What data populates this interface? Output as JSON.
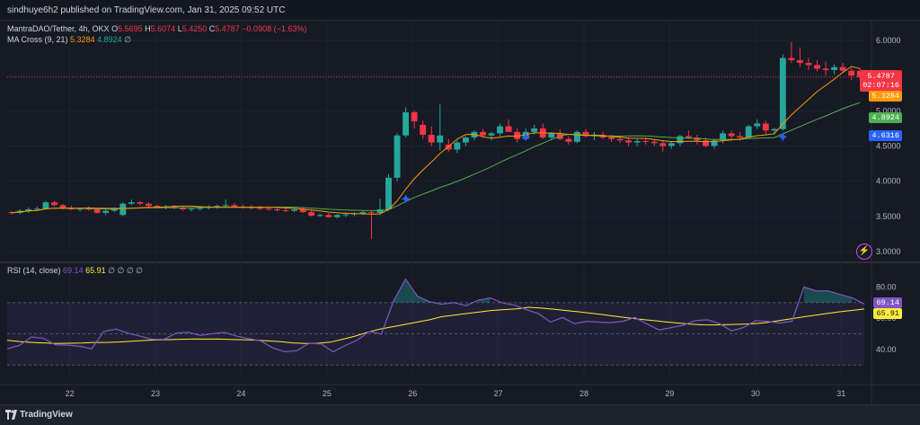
{
  "header": {
    "publish_text": "sindhuye6h2 published on TradingView.com, Jan 31, 2025 09:52 UTC"
  },
  "legend": {
    "symbol": "MantraDAO/Tether, 4h, OKX",
    "o_label": "O",
    "o_value": "5.5695",
    "h_label": "H",
    "h_value": "5.6074",
    "l_label": "L",
    "l_value": "5.4250",
    "c_label": "C",
    "c_value": "5.4787",
    "change": "−0.0908 (−1.63%)",
    "ma_label": "MA Cross (9, 21)",
    "ma_fast": "5.3284",
    "ma_slow": "4.8924",
    "ma_extra": "∅",
    "rsi_label": "RSI (14, close)",
    "rsi_value": "69.14",
    "rsi_ma": "65.91",
    "rsi_extra": "∅ ∅ ∅ ∅"
  },
  "price_tags": {
    "last_price": "5.4787",
    "countdown": "02:07:16",
    "ma_fast": "5.3284",
    "ma_slow": "4.8924",
    "cross_level": "4.6316",
    "rsi": "69.14",
    "rsi_ma": "65.91"
  },
  "footer": {
    "brand": "TradingView"
  },
  "colors": {
    "up": "#26a69a",
    "down": "#f23645",
    "ma_fast": "#ff9800",
    "ma_slow": "#4caf50",
    "rsi": "#7e57c2",
    "rsi_ma": "#ffeb3b",
    "cross": "#2962ff"
  },
  "chart_data": [
    {
      "type": "candlestick",
      "title": "MantraDAO/Tether, 4h, OKX",
      "ylim": [
        3.0,
        6.0
      ],
      "y_ticks": [
        3.0,
        3.5,
        4.0,
        4.5,
        5.0,
        5.5,
        6.0
      ],
      "y_tick_labels": [
        "3.0000",
        "3.5000",
        "4.0000",
        "4.5000",
        "5.0000",
        "5.5000",
        "6.0000"
      ],
      "x_ticks": [
        {
          "day": "22",
          "i": 6.8
        },
        {
          "day": "23",
          "i": 16.8
        },
        {
          "day": "24",
          "i": 26.8
        },
        {
          "day": "25",
          "i": 36.8
        },
        {
          "day": "26",
          "i": 46.8
        },
        {
          "day": "27",
          "i": 56.8
        },
        {
          "day": "28",
          "i": 66.8
        },
        {
          "day": "29",
          "i": 76.8
        },
        {
          "day": "30",
          "i": 86.8
        },
        {
          "day": "31",
          "i": 96.8
        }
      ],
      "candles": [
        [
          3.56,
          3.58,
          3.53,
          3.55
        ],
        [
          3.55,
          3.6,
          3.53,
          3.58
        ],
        [
          3.58,
          3.63,
          3.55,
          3.6
        ],
        [
          3.6,
          3.64,
          3.58,
          3.61
        ],
        [
          3.61,
          3.72,
          3.6,
          3.7
        ],
        [
          3.7,
          3.72,
          3.64,
          3.66
        ],
        [
          3.66,
          3.68,
          3.6,
          3.62
        ],
        [
          3.62,
          3.65,
          3.59,
          3.6
        ],
        [
          3.6,
          3.63,
          3.57,
          3.61
        ],
        [
          3.61,
          3.64,
          3.58,
          3.6
        ],
        [
          3.6,
          3.62,
          3.54,
          3.55
        ],
        [
          3.55,
          3.6,
          3.52,
          3.58
        ],
        [
          3.58,
          3.63,
          3.56,
          3.61
        ],
        [
          3.52,
          3.7,
          3.5,
          3.68
        ],
        [
          3.68,
          3.74,
          3.66,
          3.7
        ],
        [
          3.7,
          3.72,
          3.66,
          3.68
        ],
        [
          3.68,
          3.7,
          3.63,
          3.65
        ],
        [
          3.65,
          3.67,
          3.61,
          3.63
        ],
        [
          3.63,
          3.66,
          3.6,
          3.64
        ],
        [
          3.64,
          3.66,
          3.6,
          3.62
        ],
        [
          3.62,
          3.64,
          3.58,
          3.6
        ],
        [
          3.6,
          3.63,
          3.57,
          3.61
        ],
        [
          3.61,
          3.64,
          3.58,
          3.62
        ],
        [
          3.62,
          3.66,
          3.6,
          3.64
        ],
        [
          3.64,
          3.67,
          3.61,
          3.65
        ],
        [
          3.65,
          3.74,
          3.62,
          3.66
        ],
        [
          3.66,
          3.69,
          3.63,
          3.64
        ],
        [
          3.64,
          3.67,
          3.61,
          3.63
        ],
        [
          3.63,
          3.66,
          3.6,
          3.62
        ],
        [
          3.62,
          3.65,
          3.59,
          3.61
        ],
        [
          3.61,
          3.64,
          3.58,
          3.6
        ],
        [
          3.6,
          3.63,
          3.57,
          3.59
        ],
        [
          3.59,
          3.62,
          3.56,
          3.58
        ],
        [
          3.58,
          3.62,
          3.56,
          3.6
        ],
        [
          3.6,
          3.63,
          3.55,
          3.56
        ],
        [
          3.56,
          3.59,
          3.5,
          3.51
        ],
        [
          3.51,
          3.54,
          3.49,
          3.52
        ],
        [
          3.52,
          3.55,
          3.48,
          3.49
        ],
        [
          3.49,
          3.53,
          3.47,
          3.52
        ],
        [
          3.52,
          3.56,
          3.49,
          3.53
        ],
        [
          3.53,
          3.56,
          3.5,
          3.54
        ],
        [
          3.54,
          3.58,
          3.52,
          3.56
        ],
        [
          3.56,
          3.58,
          3.18,
          3.55
        ],
        [
          3.55,
          3.75,
          3.52,
          3.6
        ],
        [
          3.6,
          4.1,
          3.58,
          4.05
        ],
        [
          4.05,
          4.68,
          4.0,
          4.65
        ],
        [
          4.65,
          5.05,
          4.62,
          4.98
        ],
        [
          4.98,
          5.0,
          4.75,
          4.85
        ],
        [
          4.8,
          4.86,
          4.6,
          4.66
        ],
        [
          4.66,
          4.78,
          4.5,
          4.55
        ],
        [
          4.55,
          5.1,
          4.44,
          4.65
        ],
        [
          4.52,
          4.6,
          4.42,
          4.45
        ],
        [
          4.45,
          4.58,
          4.4,
          4.55
        ],
        [
          4.55,
          4.64,
          4.5,
          4.62
        ],
        [
          4.62,
          4.72,
          4.58,
          4.7
        ],
        [
          4.7,
          4.74,
          4.62,
          4.65
        ],
        [
          4.65,
          4.7,
          4.58,
          4.68
        ],
        [
          4.68,
          4.82,
          4.64,
          4.78
        ],
        [
          4.78,
          4.88,
          4.72,
          4.7
        ],
        [
          4.7,
          4.75,
          4.55,
          4.6
        ],
        [
          4.6,
          4.75,
          4.58,
          4.7
        ],
        [
          4.7,
          4.8,
          4.66,
          4.75
        ],
        [
          4.75,
          4.82,
          4.6,
          4.62
        ],
        [
          4.62,
          4.7,
          4.58,
          4.68
        ],
        [
          4.68,
          4.74,
          4.58,
          4.6
        ],
        [
          4.6,
          4.64,
          4.52,
          4.56
        ],
        [
          4.56,
          4.72,
          4.54,
          4.7
        ],
        [
          4.7,
          4.74,
          4.62,
          4.64
        ],
        [
          4.64,
          4.7,
          4.58,
          4.66
        ],
        [
          4.66,
          4.7,
          4.6,
          4.62
        ],
        [
          4.62,
          4.66,
          4.56,
          4.6
        ],
        [
          4.6,
          4.64,
          4.54,
          4.58
        ],
        [
          4.58,
          4.62,
          4.5,
          4.55
        ],
        [
          4.55,
          4.6,
          4.5,
          4.57
        ],
        [
          4.57,
          4.62,
          4.52,
          4.56
        ],
        [
          4.56,
          4.6,
          4.5,
          4.54
        ],
        [
          4.54,
          4.58,
          4.42,
          4.5
        ],
        [
          4.5,
          4.56,
          4.46,
          4.54
        ],
        [
          4.54,
          4.66,
          4.5,
          4.64
        ],
        [
          4.64,
          4.72,
          4.6,
          4.62
        ],
        [
          4.62,
          4.66,
          4.52,
          4.58
        ],
        [
          4.58,
          4.62,
          4.48,
          4.5
        ],
        [
          4.5,
          4.6,
          4.46,
          4.58
        ],
        [
          4.58,
          4.72,
          4.54,
          4.68
        ],
        [
          4.68,
          4.72,
          4.6,
          4.64
        ],
        [
          4.64,
          4.7,
          4.58,
          4.62
        ],
        [
          4.62,
          4.8,
          4.6,
          4.78
        ],
        [
          4.78,
          4.88,
          4.74,
          4.82
        ],
        [
          4.82,
          4.86,
          4.66,
          4.72
        ],
        [
          4.72,
          4.76,
          4.66,
          4.74
        ],
        [
          4.74,
          5.8,
          4.72,
          5.75
        ],
        [
          5.75,
          5.98,
          5.68,
          5.72
        ],
        [
          5.72,
          5.9,
          5.62,
          5.68
        ],
        [
          5.68,
          5.75,
          5.58,
          5.65
        ],
        [
          5.65,
          5.72,
          5.56,
          5.6
        ],
        [
          5.6,
          5.7,
          5.5,
          5.58
        ],
        [
          5.58,
          5.66,
          5.52,
          5.62
        ],
        [
          5.62,
          5.68,
          5.55,
          5.57
        ],
        [
          5.57,
          5.61,
          5.44,
          5.5
        ],
        [
          5.5695,
          5.6074,
          5.425,
          5.4787
        ]
      ],
      "ma_fast_name": "MA 9",
      "ma_slow_name": "MA 21",
      "ma_fast_last": 5.3284,
      "ma_slow_last": 4.8924,
      "cross_points": [
        {
          "i": 46,
          "y": 3.75
        },
        {
          "i": 60,
          "y": 4.63
        },
        {
          "i": 90,
          "y": 4.63
        }
      ]
    },
    {
      "type": "line",
      "title": "RSI (14, close)",
      "ylim": [
        25,
        90
      ],
      "y_ticks": [
        40,
        60,
        80
      ],
      "y_tick_labels": [
        "40.00",
        "60.00",
        "80.00"
      ],
      "bands": [
        30,
        70
      ],
      "series": [
        {
          "name": "RSI",
          "values": [
            40.5,
            42.5,
            48,
            47.2,
            43,
            42.8,
            42,
            40.5,
            51.5,
            53,
            50.5,
            48.5,
            46.5,
            46.5,
            50.5,
            51,
            49,
            50,
            51,
            48.5,
            47,
            45.5,
            41,
            38.5,
            39.2,
            44,
            43.5,
            38.5,
            42.5,
            46,
            51.5,
            49.8,
            71,
            85,
            74,
            70.5,
            69,
            70,
            68,
            71.5,
            73,
            69.8,
            68.5,
            65.5,
            63,
            57.5,
            60.5,
            56.5,
            58,
            57.5,
            57.2,
            58,
            60.5,
            56.3,
            52.5,
            54,
            55.5,
            58.5,
            59,
            56.5,
            52,
            54,
            58.5,
            58,
            57,
            58,
            80,
            77.5,
            77.5,
            75.2,
            73,
            69.14
          ]
        },
        {
          "name": "RSI MA",
          "values": [
            45.8,
            45.1,
            44.5,
            44.1,
            43.8,
            44.0,
            44.1,
            44.5,
            44.5,
            44.8,
            45.3,
            45.7,
            46.1,
            46.3,
            46.5,
            46.7,
            46.6,
            46.7,
            46.4,
            46.2,
            46,
            45.5,
            45,
            44.2,
            43.8,
            44,
            44.7,
            46.5,
            48.5,
            51,
            53,
            54.5,
            56,
            57.5,
            59,
            61,
            62,
            63,
            64,
            65,
            65.5,
            66,
            67,
            66.5,
            65.8,
            64.9,
            64.1,
            63.2,
            62.3,
            61.2,
            60.2,
            59.3,
            58.5,
            57.7,
            56.9,
            56.2,
            55.8,
            55.7,
            55.9,
            56.1,
            56.4,
            57.1,
            58.3,
            59.5,
            60.7,
            61.9,
            63,
            64.1,
            65.0,
            65.91
          ]
        }
      ]
    }
  ]
}
